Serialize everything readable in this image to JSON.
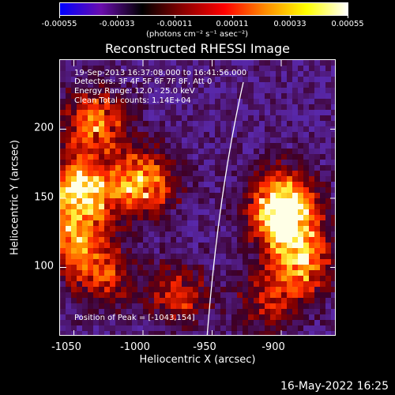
{
  "colorbar": {
    "ticks": [
      "-0.00055",
      "-0.00033",
      "-0.00011",
      "0.00011",
      "0.00033",
      "0.00055"
    ],
    "units": "(photons cm⁻² s⁻¹ asec⁻²)",
    "stops": [
      "#0000ff",
      "#6a0dad",
      "#000000",
      "#8b0000",
      "#ff0000",
      "#ff8c00",
      "#ffff00",
      "#ffffff"
    ]
  },
  "info": {
    "time_range": "19-Sep-2013 16:37:08.000 to 16:41:56.000",
    "detectors": "Detectors: 3F 4F 5F 6F 7F 8F, Att 0",
    "energy": "Energy Range: 12.0 - 25.0 keV",
    "clean": "Clean     Total counts: 1.14E+04",
    "peak": "Position of Peak = [-1043,154]"
  },
  "footer": {
    "timestamp": "16-May-2022 16:25"
  },
  "chart_data": {
    "type": "heatmap",
    "title": "Reconstructed RHESSI Image",
    "xlabel": "Heliocentric X (arcsec)",
    "ylabel": "Heliocentric Y (arcsec)",
    "xlim": [
      -1060,
      -860
    ],
    "ylim": [
      50,
      250
    ],
    "xticks": [
      "-1050",
      "-1000",
      "-950",
      "-900"
    ],
    "yticks": [
      "100",
      "150",
      "200"
    ],
    "clim": [
      -0.00055,
      0.00055
    ],
    "peak": [
      -1043,
      154
    ],
    "limb_color": "#ffffff",
    "bright_regions": [
      {
        "x": -1045,
        "y": 155,
        "level": 1.0
      },
      {
        "x": -1035,
        "y": 205,
        "level": 0.7
      },
      {
        "x": -1000,
        "y": 162,
        "level": 0.8
      },
      {
        "x": -1050,
        "y": 120,
        "level": 0.6
      },
      {
        "x": -895,
        "y": 130,
        "level": 0.85
      },
      {
        "x": -900,
        "y": 150,
        "level": 0.7
      },
      {
        "x": -885,
        "y": 100,
        "level": 0.6
      },
      {
        "x": -1030,
        "y": 95,
        "level": 0.5
      },
      {
        "x": -975,
        "y": 80,
        "level": 0.45
      },
      {
        "x": -910,
        "y": 75,
        "level": 0.4
      }
    ]
  }
}
